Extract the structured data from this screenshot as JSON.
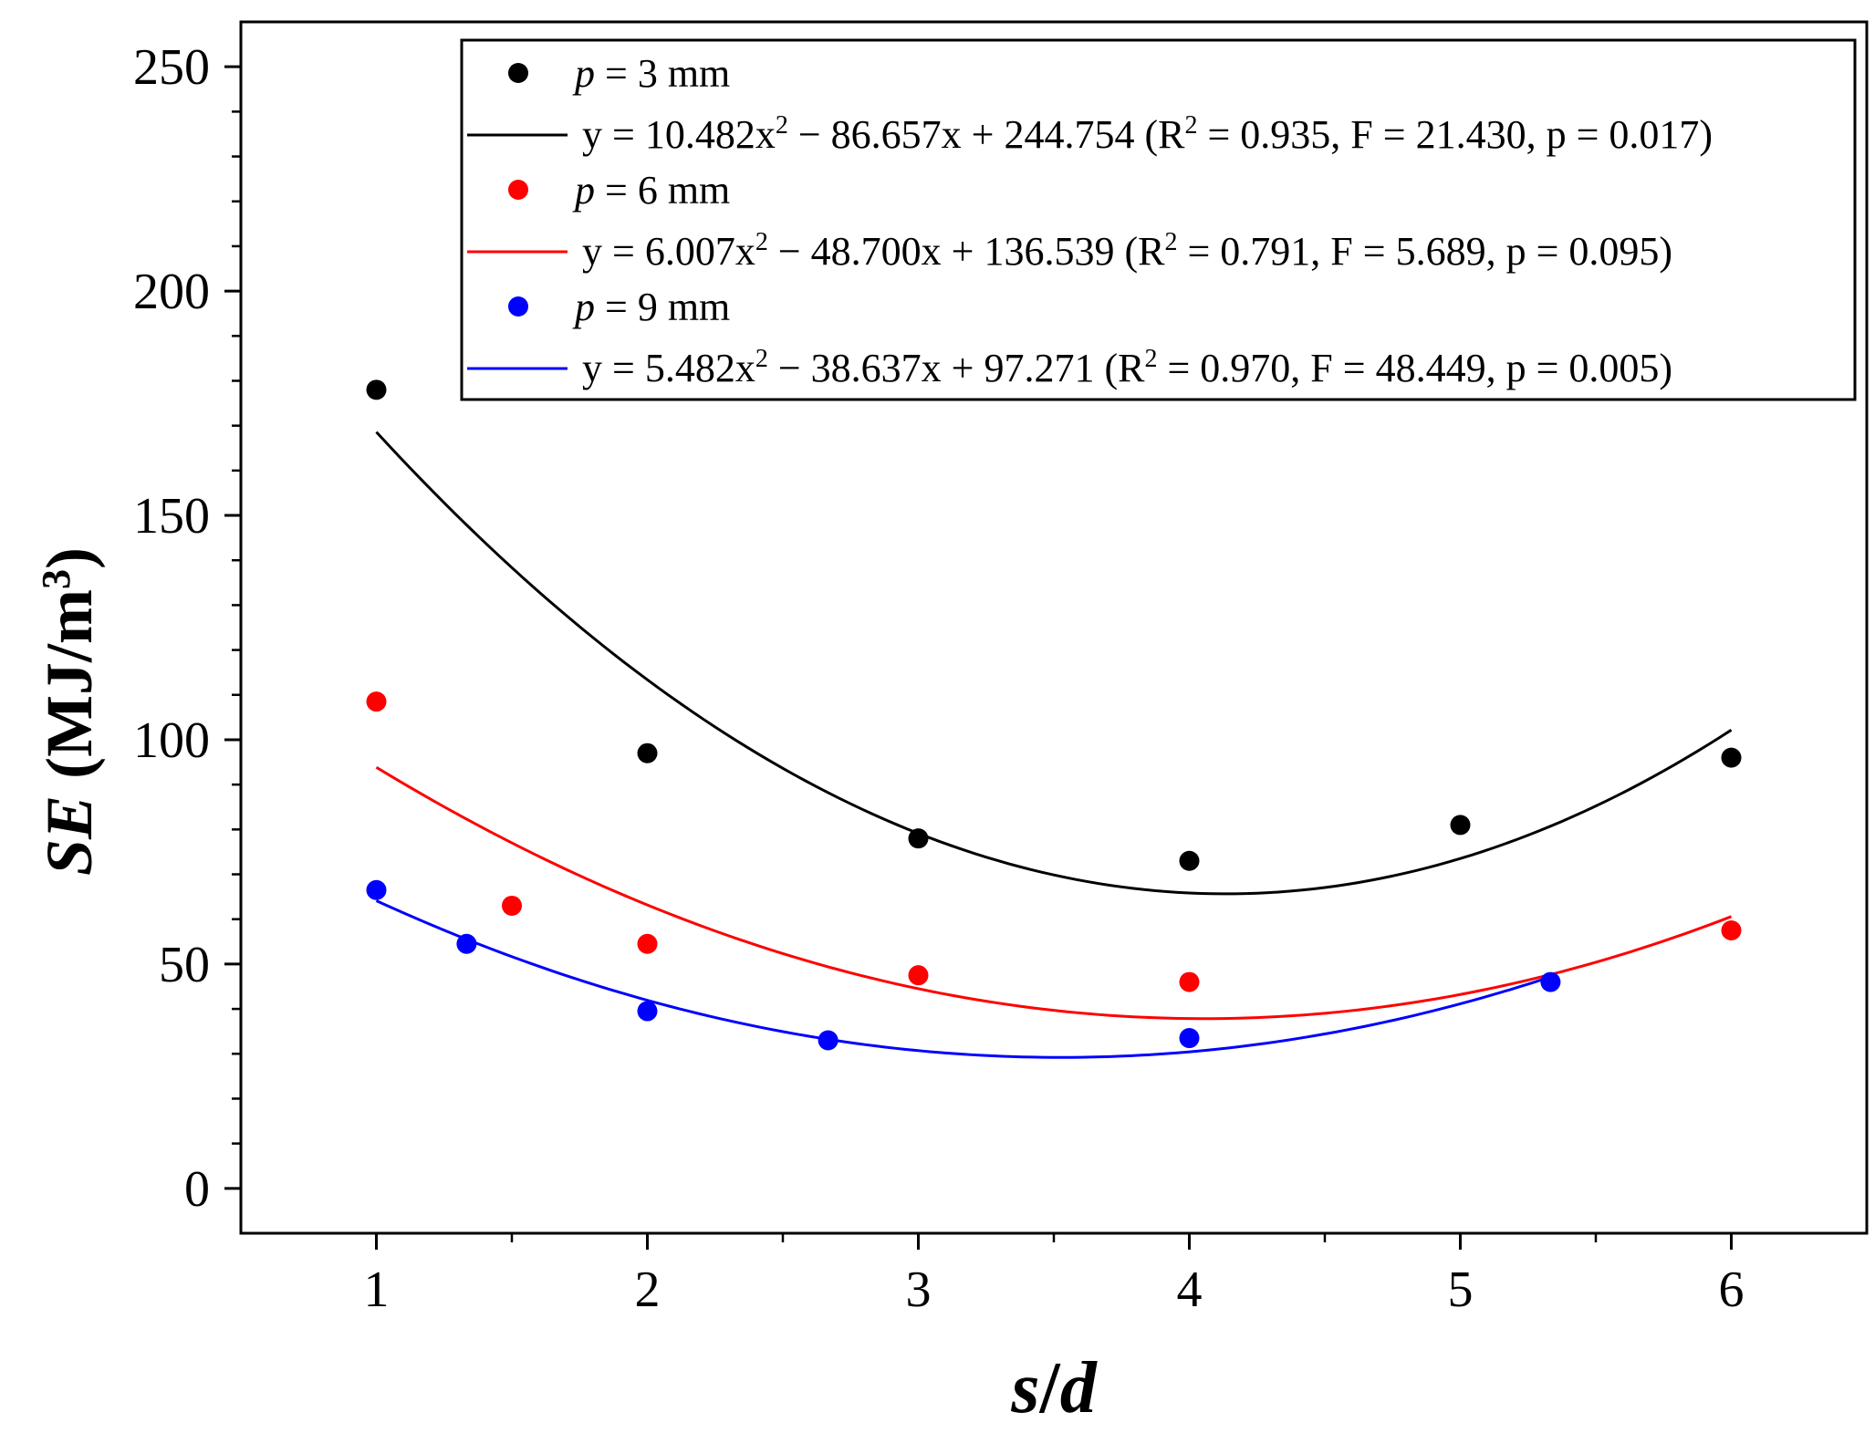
{
  "chart_data": {
    "type": "scatter",
    "title": "",
    "xlabel": "s/d",
    "ylabel": "SE (MJ/m3)",
    "ylabel_parts": {
      "italic": "SE",
      "unit_main": " (MJ/m",
      "unit_sup": "3",
      "unit_close": ")"
    },
    "xlabel_parts": {
      "s": "s",
      "slash": "/",
      "d": "d"
    },
    "xlim": [
      0.5,
      6.5
    ],
    "ylim": [
      -10,
      260
    ],
    "xticks": [
      1,
      2,
      3,
      4,
      5,
      6
    ],
    "yticks": [
      0,
      50,
      100,
      150,
      200,
      250
    ],
    "grid": false,
    "legend_position": "top-right",
    "series": [
      {
        "name": "p = 3 mm",
        "color": "#000000",
        "x": [
          1,
          2,
          3,
          4,
          5,
          6
        ],
        "y": [
          178,
          97,
          78,
          73,
          81,
          96
        ],
        "fit": {
          "a": 10.482,
          "b": -86.657,
          "c": 244.754,
          "label": "y = 10.482x2 − 86.657x + 244.754 (R2 = 0.935, F = 21.430, p = 0.017)",
          "label_parts": [
            "y = 10.482x",
            "2",
            " − 86.657x + 244.754 (R",
            "2",
            " = 0.935, F = 21.430, p = 0.017)"
          ]
        }
      },
      {
        "name": "p = 6 mm",
        "color": "#ff0000",
        "x": [
          1,
          1.5,
          2,
          3,
          4,
          6
        ],
        "y": [
          108.5,
          63,
          54.5,
          47.5,
          46,
          57.5
        ],
        "fit": {
          "a": 6.007,
          "b": -48.7,
          "c": 136.539,
          "label": "y = 6.007x2 − 48.700x + 136.539 (R2 = 0.791, F = 5.689, p = 0.095)",
          "label_parts": [
            "y = 6.007x",
            "2",
            " − 48.700x + 136.539 (R",
            "2",
            " = 0.791, F = 5.689, p = 0.095)"
          ]
        }
      },
      {
        "name": "p = 9 mm",
        "color": "#0000ff",
        "x": [
          1,
          1.333,
          2,
          2.667,
          4,
          5.333
        ],
        "y": [
          66.5,
          54.5,
          39.5,
          33,
          33.5,
          46
        ],
        "fit": {
          "a": 5.482,
          "b": -38.637,
          "c": 97.271,
          "label": "y = 5.482x2 − 38.637x + 97.271 (R2 = 0.970, F = 48.449, p = 0.005)",
          "label_parts": [
            "y = 5.482x",
            "2",
            " − 38.637x + 97.271 (R",
            "2",
            " = 0.970, F = 48.449, p = 0.005)"
          ]
        }
      }
    ],
    "legend_entries": [
      {
        "series_index": 0,
        "kind": "marker",
        "prefix": "p",
        "text": " = 3 mm"
      },
      {
        "series_index": 0,
        "kind": "line"
      },
      {
        "series_index": 1,
        "kind": "marker",
        "prefix": "p",
        "text": " = 6 mm"
      },
      {
        "series_index": 1,
        "kind": "line"
      },
      {
        "series_index": 2,
        "kind": "marker",
        "prefix": "p",
        "text": " = 9 mm"
      },
      {
        "series_index": 2,
        "kind": "line"
      }
    ]
  }
}
